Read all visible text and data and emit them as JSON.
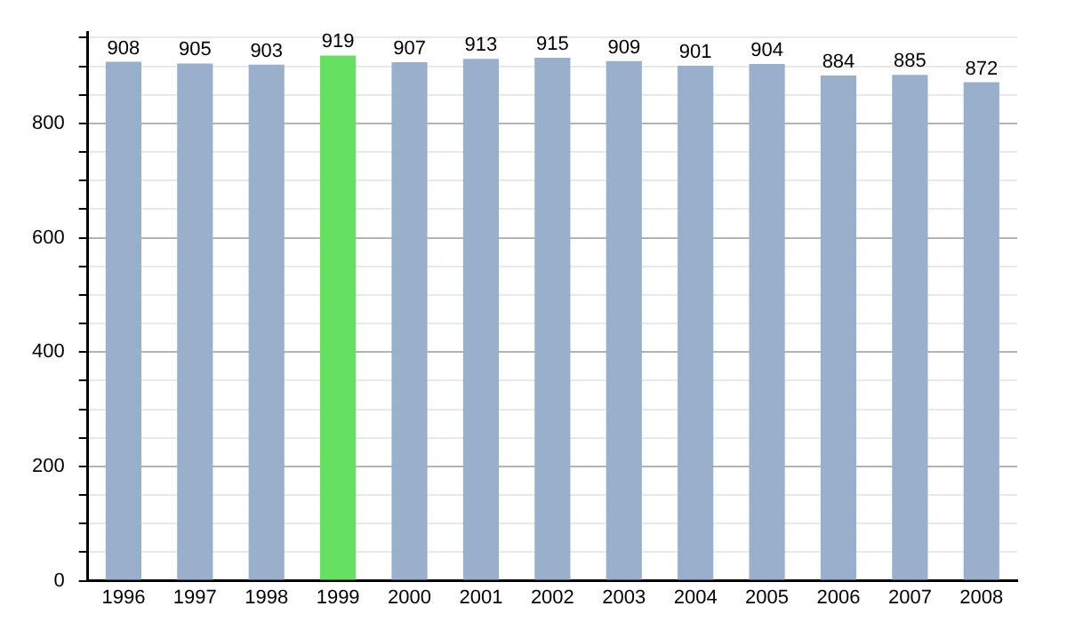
{
  "chart_data": {
    "type": "bar",
    "categories": [
      "1996",
      "1997",
      "1998",
      "1999",
      "2000",
      "2001",
      "2002",
      "2003",
      "2004",
      "2005",
      "2006",
      "2007",
      "2008"
    ],
    "values": [
      908,
      905,
      903,
      919,
      907,
      913,
      915,
      909,
      901,
      904,
      884,
      885,
      872
    ],
    "colors": [
      "#98b0cc",
      "#98b0cc",
      "#98b0cc",
      "#66e060",
      "#98b0cc",
      "#98b0cc",
      "#98b0cc",
      "#98b0cc",
      "#98b0cc",
      "#98b0cc",
      "#98b0cc",
      "#98b0cc",
      "#98b0cc"
    ],
    "ylim": [
      0,
      960
    ],
    "yticks": [
      0,
      {
        "value": 50,
        "label": null
      },
      {
        "value": 100,
        "label": null
      },
      {
        "value": 150,
        "label": null
      },
      200,
      {
        "value": 250,
        "label": null
      },
      {
        "value": 300,
        "label": null
      },
      {
        "value": 350,
        "label": null
      },
      400,
      {
        "value": 450,
        "label": null
      },
      {
        "value": 500,
        "label": null
      },
      {
        "value": 550,
        "label": null
      },
      600,
      {
        "value": 650,
        "label": null
      },
      {
        "value": 700,
        "label": null
      },
      {
        "value": 750,
        "label": null
      },
      800,
      {
        "value": 850,
        "label": null
      },
      {
        "value": 900,
        "label": null
      },
      {
        "value": 950,
        "label": null
      }
    ],
    "grid": true,
    "data_labels": true
  }
}
